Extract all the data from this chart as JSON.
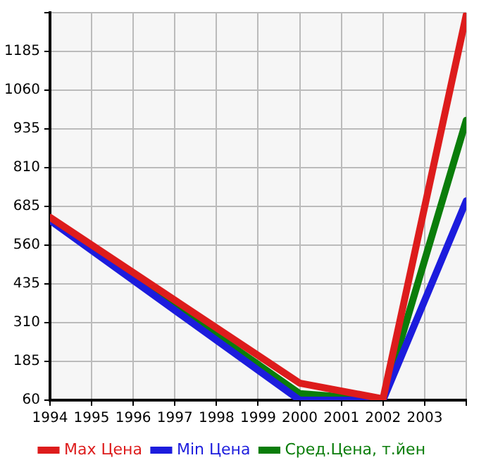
{
  "chart_data": {
    "type": "line",
    "x": [
      1994,
      2000,
      2002,
      2004
    ],
    "series": [
      {
        "name": "Max Цена",
        "color": "#dd1c1c",
        "values": [
          650,
          115,
          64,
          1303
        ]
      },
      {
        "name": "Min Цена",
        "color": "#1c1cdd",
        "values": [
          640,
          60,
          60,
          703
        ]
      },
      {
        "name": "Сред.Цена, т.йен",
        "color": "#0a7d0a",
        "values": [
          646,
          81,
          60,
          963
        ]
      }
    ],
    "xlim": [
      1994,
      2004
    ],
    "xticks": [
      1994,
      1995,
      1996,
      1997,
      1998,
      1999,
      2000,
      2001,
      2002,
      2003,
      {
        "value": 2004,
        "label": null
      }
    ],
    "ylim": [
      60,
      1310
    ],
    "yticks": [
      60,
      185,
      310,
      435,
      560,
      685,
      810,
      935,
      1060,
      1185,
      {
        "value": 1310,
        "label": null
      }
    ],
    "grid": true,
    "legend": "bottom",
    "marker": "none",
    "line_style": "solid"
  }
}
